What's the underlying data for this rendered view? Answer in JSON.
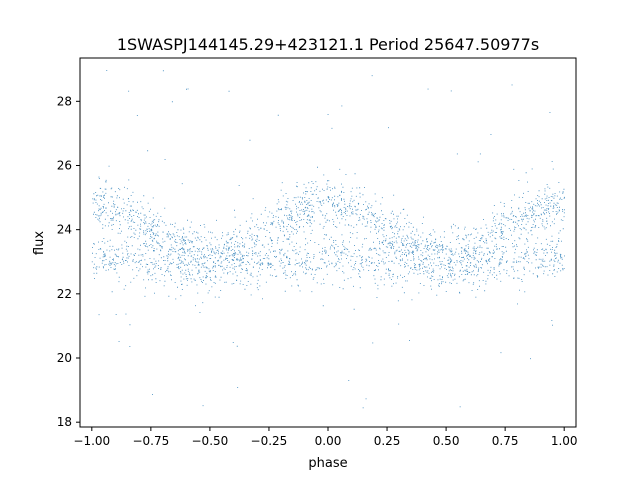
{
  "chart_data": {
    "type": "scatter",
    "title": "1SWASPJ144145.29+423121.1 Period 25647.50977s",
    "xlabel": "phase",
    "ylabel": "flux",
    "xlim": [
      -1.05,
      1.05
    ],
    "ylim": [
      17.85,
      29.35
    ],
    "xticks": [
      -1.0,
      -0.75,
      -0.5,
      -0.25,
      0.0,
      0.25,
      0.5,
      0.75,
      1.0
    ],
    "xtick_labels": [
      "−1.00",
      "−0.75",
      "−0.50",
      "−0.25",
      "0.00",
      "0.25",
      "0.50",
      "0.75",
      "1.00"
    ],
    "yticks": [
      18,
      20,
      22,
      24,
      26,
      28
    ],
    "ytick_labels": [
      "18",
      "20",
      "22",
      "24",
      "26",
      "28"
    ],
    "grid": false,
    "legend": "none",
    "marker_color": "#1f77b4",
    "approx_point_count": 24000,
    "phase_range": [
      -1.0,
      1.0
    ],
    "envelope": {
      "description_values": "dense band; median flux ~23.5, typical range 22.5-25.5",
      "lower_edge": 22.5,
      "upper_edge_max": 25.6,
      "upper_edge_min": 23.4,
      "max_phases": [
        -1.0,
        0.0,
        1.0
      ],
      "min_phases": [
        -0.5,
        0.5
      ],
      "outlier_range": [
        18.3,
        29.1
      ]
    },
    "branches": [
      {
        "name": "rising/falling arch",
        "amplitude": 1.5,
        "baseline": 23.3,
        "peak_phases": [
          -1.0,
          0.0,
          1.0
        ]
      },
      {
        "name": "flat lower sequence",
        "level": 23.0
      }
    ]
  }
}
